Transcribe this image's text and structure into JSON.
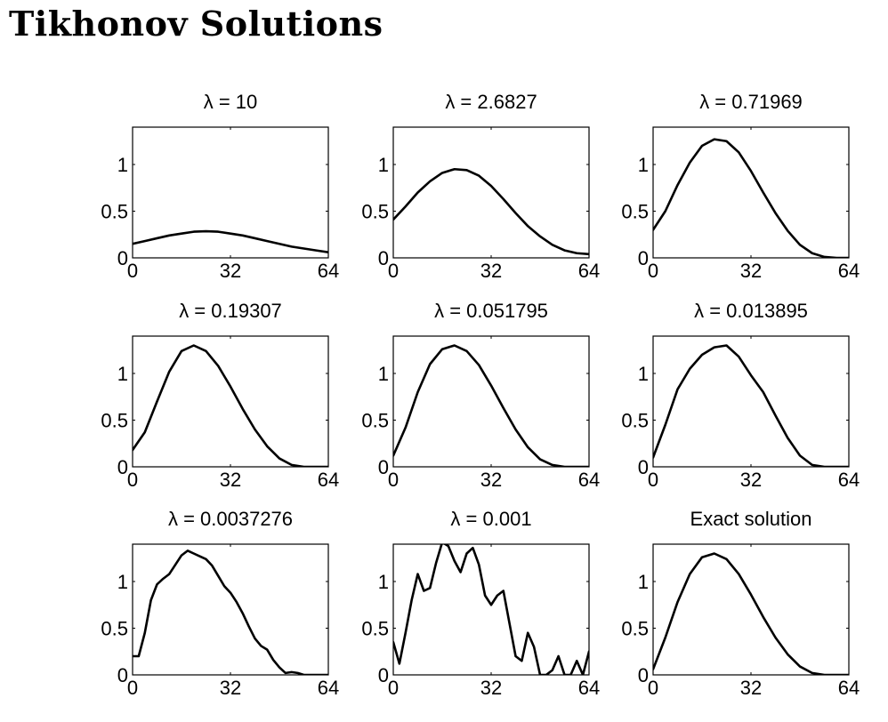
{
  "page": {
    "title": "Tikhonov Solutions"
  },
  "chart_data": [
    {
      "type": "line",
      "title": "λ = 10",
      "xlim": [
        0,
        64
      ],
      "ylim": [
        0,
        1.4
      ],
      "xticks": [
        0,
        32,
        64
      ],
      "yticks": [
        0,
        0.5,
        1
      ],
      "grid": false,
      "series": [
        {
          "x": [
            0,
            4,
            8,
            12,
            16,
            20,
            24,
            28,
            32,
            36,
            40,
            44,
            48,
            52,
            56,
            60,
            64
          ],
          "values": [
            0.15,
            0.18,
            0.21,
            0.24,
            0.26,
            0.28,
            0.285,
            0.28,
            0.26,
            0.24,
            0.21,
            0.18,
            0.15,
            0.12,
            0.1,
            0.08,
            0.06
          ]
        }
      ]
    },
    {
      "type": "line",
      "title": "λ = 2.6827",
      "xlim": [
        0,
        64
      ],
      "ylim": [
        0,
        1.4
      ],
      "xticks": [
        0,
        32,
        64
      ],
      "yticks": [
        0,
        0.5,
        1
      ],
      "grid": false,
      "series": [
        {
          "x": [
            0,
            4,
            8,
            12,
            16,
            20,
            24,
            28,
            32,
            36,
            40,
            44,
            48,
            52,
            56,
            60,
            64
          ],
          "values": [
            0.41,
            0.55,
            0.7,
            0.82,
            0.91,
            0.95,
            0.94,
            0.88,
            0.77,
            0.63,
            0.48,
            0.34,
            0.23,
            0.14,
            0.08,
            0.05,
            0.04
          ]
        }
      ]
    },
    {
      "type": "line",
      "title": "λ = 0.71969",
      "xlim": [
        0,
        64
      ],
      "ylim": [
        0,
        1.4
      ],
      "xticks": [
        0,
        32,
        64
      ],
      "yticks": [
        0,
        0.5,
        1
      ],
      "grid": false,
      "series": [
        {
          "x": [
            0,
            4,
            8,
            12,
            16,
            20,
            24,
            28,
            32,
            36,
            40,
            44,
            48,
            52,
            56,
            60,
            62,
            64
          ],
          "values": [
            0.3,
            0.5,
            0.78,
            1.02,
            1.2,
            1.27,
            1.25,
            1.13,
            0.93,
            0.7,
            0.48,
            0.29,
            0.14,
            0.05,
            0.01,
            0.0,
            0.0,
            0.0
          ]
        }
      ]
    },
    {
      "type": "line",
      "title": "λ = 0.19307",
      "xlim": [
        0,
        64
      ],
      "ylim": [
        0,
        1.4
      ],
      "xticks": [
        0,
        32,
        64
      ],
      "yticks": [
        0,
        0.5,
        1
      ],
      "grid": false,
      "series": [
        {
          "x": [
            0,
            4,
            8,
            12,
            16,
            20,
            24,
            28,
            32,
            36,
            40,
            44,
            48,
            52,
            56,
            60,
            64
          ],
          "values": [
            0.18,
            0.37,
            0.7,
            1.02,
            1.24,
            1.3,
            1.24,
            1.08,
            0.86,
            0.62,
            0.4,
            0.22,
            0.09,
            0.02,
            0.0,
            0.0,
            0.0
          ]
        }
      ]
    },
    {
      "type": "line",
      "title": "λ = 0.051795",
      "xlim": [
        0,
        64
      ],
      "ylim": [
        0,
        1.4
      ],
      "xticks": [
        0,
        32,
        64
      ],
      "yticks": [
        0,
        0.5,
        1
      ],
      "grid": false,
      "series": [
        {
          "x": [
            0,
            4,
            8,
            12,
            16,
            20,
            24,
            28,
            32,
            36,
            40,
            44,
            48,
            52,
            56,
            60,
            64
          ],
          "values": [
            0.12,
            0.42,
            0.8,
            1.1,
            1.26,
            1.3,
            1.24,
            1.09,
            0.87,
            0.63,
            0.4,
            0.21,
            0.08,
            0.02,
            0.0,
            0.0,
            0.0
          ]
        }
      ]
    },
    {
      "type": "line",
      "title": "λ = 0.013895",
      "xlim": [
        0,
        64
      ],
      "ylim": [
        0,
        1.4
      ],
      "xticks": [
        0,
        32,
        64
      ],
      "yticks": [
        0,
        0.5,
        1
      ],
      "grid": false,
      "series": [
        {
          "x": [
            0,
            4,
            8,
            12,
            16,
            20,
            24,
            28,
            32,
            36,
            40,
            44,
            48,
            52,
            56,
            60,
            64
          ],
          "values": [
            0.1,
            0.45,
            0.83,
            1.05,
            1.2,
            1.28,
            1.3,
            1.18,
            0.98,
            0.8,
            0.55,
            0.31,
            0.12,
            0.02,
            0.0,
            0.0,
            0.0
          ]
        }
      ]
    },
    {
      "type": "line",
      "title": "λ = 0.0037276",
      "xlim": [
        0,
        64
      ],
      "ylim": [
        0,
        1.4
      ],
      "xticks": [
        0,
        32,
        64
      ],
      "yticks": [
        0,
        0.5,
        1
      ],
      "grid": false,
      "series": [
        {
          "x": [
            0,
            2,
            4,
            6,
            8,
            10,
            12,
            14,
            16,
            18,
            20,
            22,
            24,
            26,
            28,
            30,
            32,
            34,
            36,
            38,
            40,
            42,
            44,
            46,
            48,
            50,
            52,
            54,
            56,
            58,
            60,
            62,
            64
          ],
          "values": [
            0.2,
            0.2,
            0.45,
            0.8,
            0.97,
            1.03,
            1.08,
            1.18,
            1.28,
            1.33,
            1.3,
            1.27,
            1.24,
            1.17,
            1.06,
            0.95,
            0.88,
            0.78,
            0.66,
            0.52,
            0.39,
            0.31,
            0.27,
            0.16,
            0.08,
            0.02,
            0.03,
            0.02,
            0.0,
            0.0,
            0.0,
            0.0,
            0.0
          ]
        }
      ]
    },
    {
      "type": "line",
      "title": "λ = 0.001",
      "xlim": [
        0,
        64
      ],
      "ylim": [
        0,
        1.4
      ],
      "xticks": [
        0,
        32,
        64
      ],
      "yticks": [
        0,
        0.5,
        1
      ],
      "grid": false,
      "series": [
        {
          "x": [
            0,
            2,
            4,
            6,
            8,
            10,
            12,
            14,
            16,
            18,
            20,
            22,
            24,
            26,
            28,
            30,
            32,
            34,
            36,
            38,
            40,
            42,
            44,
            46,
            48,
            50,
            52,
            54,
            56,
            58,
            60,
            62,
            64
          ],
          "values": [
            0.35,
            0.12,
            0.45,
            0.8,
            1.08,
            0.9,
            0.93,
            1.2,
            1.42,
            1.38,
            1.22,
            1.1,
            1.3,
            1.36,
            1.18,
            0.85,
            0.75,
            0.85,
            0.9,
            0.55,
            0.2,
            0.15,
            0.45,
            0.3,
            0.0,
            0.0,
            0.05,
            0.2,
            0.0,
            0.0,
            0.15,
            0.0,
            0.25
          ]
        }
      ]
    },
    {
      "type": "line",
      "title": "Exact solution",
      "xlim": [
        0,
        64
      ],
      "ylim": [
        0,
        1.4
      ],
      "xticks": [
        0,
        32,
        64
      ],
      "yticks": [
        0,
        0.5,
        1
      ],
      "grid": false,
      "series": [
        {
          "x": [
            0,
            4,
            8,
            12,
            16,
            20,
            24,
            28,
            32,
            36,
            40,
            44,
            48,
            52,
            56,
            60,
            64
          ],
          "values": [
            0.06,
            0.4,
            0.78,
            1.08,
            1.26,
            1.3,
            1.24,
            1.08,
            0.86,
            0.62,
            0.4,
            0.22,
            0.09,
            0.02,
            0.0,
            0.0,
            0.0
          ]
        }
      ]
    }
  ]
}
